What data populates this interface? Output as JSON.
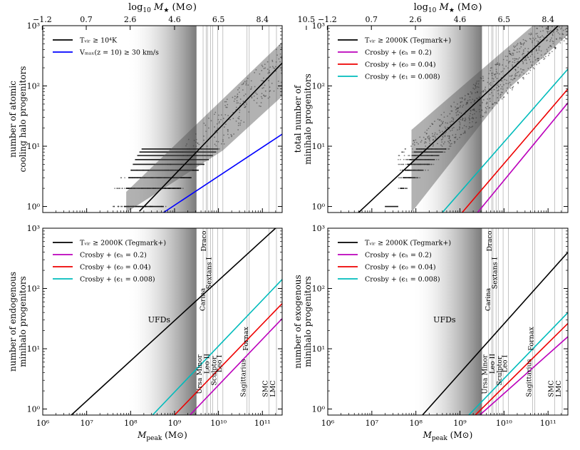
{
  "top_axis": {
    "label": "log₁₀ M★ (M⊙)",
    "ticks": [
      "−1.2",
      "0.7",
      "2.6",
      "4.6",
      "6.5",
      "8.4",
      "10.5"
    ],
    "tick_logmpeak": [
      5.99,
      6.99,
      7.99,
      9.0,
      10.0,
      11.0,
      12.0
    ]
  },
  "bottom_axis": {
    "label": "Mpeak (M⊙)",
    "ticks": [
      "10⁶",
      "10⁷",
      "10⁸",
      "10⁹",
      "10¹⁰",
      "10¹¹"
    ]
  },
  "y_ticks": [
    "10⁰",
    "10¹",
    "10²",
    "10³"
  ],
  "chart_data": [
    {
      "type": "line",
      "panel": "top-left",
      "ylabel": [
        "number of atomic",
        "cooling halo progenitors"
      ],
      "xlim": [
        6,
        11.45
      ],
      "ylim": [
        -0.1,
        3
      ],
      "xscale": "log",
      "yscale": "log",
      "shaded_region_logmpeak": [
        7.9,
        9.5
      ],
      "series": [
        {
          "name": "Tᵥᵢᵣ ≥ 10⁴K",
          "color": "#000000",
          "x": [
            8.2,
            11.45
          ],
          "y_log": [
            -0.08,
            2.38
          ]
        },
        {
          "name": "Vₘₐₓ(z = 10) ≥ 30 km/s",
          "color": "#0000ff",
          "x": [
            8.75,
            11.45
          ],
          "y_log": [
            -0.1,
            1.2
          ]
        }
      ],
      "scatter_description": "simulated halos, integer progenitor counts with scatter band"
    },
    {
      "type": "line",
      "panel": "top-right",
      "ylabel": [
        "total number of",
        "minihalo progenitors"
      ],
      "xlim": [
        6,
        11.45
      ],
      "ylim": [
        -0.1,
        3
      ],
      "xscale": "log",
      "yscale": "log",
      "shaded_region_logmpeak": [
        7.9,
        9.5
      ],
      "series": [
        {
          "name": "Tᵥᵢᵣ ≥ 2000K (Tegmark+)",
          "color": "#000000",
          "x": [
            6.7,
            11.45
          ],
          "y_log": [
            -0.1,
            3.15
          ]
        },
        {
          "name": "Crosby + (ϵₕ = 0.2)",
          "color": "#bb00bb",
          "x": [
            9.4,
            11.45
          ],
          "y_log": [
            -0.1,
            1.72
          ]
        },
        {
          "name": "Crosby + (ϵ₀ = 0.04)",
          "color": "#ee0000",
          "x": [
            9.05,
            11.45
          ],
          "y_log": [
            -0.1,
            1.95
          ]
        },
        {
          "name": "Crosby + (ϵ₁ = 0.008)",
          "color": "#00bbbb",
          "x": [
            8.6,
            11.45
          ],
          "y_log": [
            -0.1,
            2.28
          ]
        }
      ]
    },
    {
      "type": "line",
      "panel": "bottom-left",
      "ylabel": [
        "number of endogenous",
        "minihalo progenitors"
      ],
      "xlim": [
        6,
        11.45
      ],
      "ylim": [
        -0.1,
        3
      ],
      "series": [
        {
          "name": "Tᵥᵢᵣ ≥ 2000K (Tegmark+)",
          "color": "#000000",
          "x": [
            6.65,
            11.45
          ],
          "y_log": [
            -0.1,
            3.1
          ]
        },
        {
          "name": "Crosby + (ϵₕ = 0.2)",
          "color": "#bb00bb",
          "x": [
            9.35,
            11.45
          ],
          "y_log": [
            -0.1,
            1.5
          ]
        },
        {
          "name": "Crosby + (ϵ₀ = 0.04)",
          "color": "#ee0000",
          "x": [
            9.0,
            11.45
          ],
          "y_log": [
            -0.1,
            1.75
          ]
        },
        {
          "name": "Crosby + (ϵ₁ = 0.008)",
          "color": "#00bbbb",
          "x": [
            8.5,
            11.45
          ],
          "y_log": [
            -0.1,
            2.15
          ]
        }
      ]
    },
    {
      "type": "line",
      "panel": "bottom-right",
      "ylabel": [
        "number of exogenous",
        "minihalo progenitors"
      ],
      "xlim": [
        6,
        11.45
      ],
      "ylim": [
        -0.1,
        3
      ],
      "series": [
        {
          "name": "Tᵥᵢᵣ ≥ 2000K (Tegmark+)",
          "color": "#000000",
          "x": [
            8.15,
            11.45
          ],
          "y_log": [
            -0.1,
            2.6
          ]
        },
        {
          "name": "Crosby + (ϵₕ = 0.2)",
          "color": "#bb00bb",
          "x": [
            9.45,
            11.45
          ],
          "y_log": [
            -0.1,
            1.2
          ]
        },
        {
          "name": "Crosby + (ϵ₀ = 0.04)",
          "color": "#ee0000",
          "x": [
            9.35,
            11.45
          ],
          "y_log": [
            -0.1,
            1.42
          ]
        },
        {
          "name": "Crosby + (ϵ₁ = 0.008)",
          "color": "#00bbbb",
          "x": [
            9.2,
            11.45
          ],
          "y_log": [
            -0.1,
            1.6
          ]
        }
      ]
    }
  ],
  "galaxies": [
    {
      "name": "Ursa Minor",
      "logm": 9.65
    },
    {
      "name": "Draco",
      "logm": 9.75
    },
    {
      "name": "Carina",
      "logm": 9.72
    },
    {
      "name": "Sextans I",
      "logm": 9.87
    },
    {
      "name": "Leo II",
      "logm": 9.82
    },
    {
      "name": "Sculptor",
      "logm": 9.98
    },
    {
      "name": "Leo I",
      "logm": 10.1
    },
    {
      "name": "Sagittarius",
      "logm": 10.65
    },
    {
      "name": "Fornax",
      "logm": 10.7
    },
    {
      "name": "SMC",
      "logm": 11.15
    },
    {
      "name": "LMC",
      "logm": 11.32
    }
  ],
  "ufd_label": "UFDs"
}
